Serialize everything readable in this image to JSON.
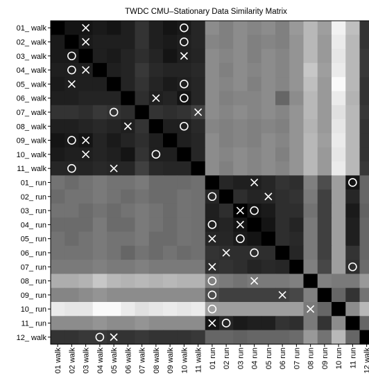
{
  "chart_data": {
    "type": "heatmap",
    "title": "TWDC  CMU–Stationary Data Similarity Matrix",
    "row_labels": [
      "01_ walk",
      "02_ walk",
      "03_ walk",
      "04_ walk",
      "05_ walk",
      "06_ walk",
      "07_ walk",
      "08_ walk",
      "09_ walk",
      "10_ walk",
      "11_ walk",
      "01_ run",
      "02_ run",
      "03_ run",
      "04_ run",
      "05_ run",
      "06_ run",
      "07_ run",
      "08_ run",
      "09_ run",
      "10_ run",
      "11_ run",
      "12_ walk"
    ],
    "col_labels": [
      "01 walk",
      "02 walk",
      "03 walk",
      "04 walk",
      "05 walk",
      "06 walk",
      "07 walk",
      "08 walk",
      "09 walk",
      "10 walk",
      "11 walk",
      "01 run",
      "02 run",
      "03 run",
      "04 run",
      "05 run",
      "06 run",
      "07 run",
      "08 run",
      "09 run",
      "10 run",
      "11 run",
      "12 walk"
    ],
    "colormap": "grayscale",
    "legend": "none",
    "grid": false,
    "values": [
      [
        0,
        8,
        8,
        10,
        8,
        12,
        20,
        12,
        8,
        10,
        15,
        55,
        50,
        55,
        52,
        55,
        50,
        60,
        72,
        62,
        95,
        75,
        20
      ],
      [
        10,
        0,
        10,
        12,
        12,
        12,
        20,
        12,
        10,
        12,
        15,
        52,
        50,
        55,
        50,
        52,
        50,
        58,
        72,
        60,
        92,
        72,
        20
      ],
      [
        10,
        10,
        0,
        12,
        10,
        14,
        18,
        14,
        8,
        12,
        14,
        55,
        52,
        55,
        50,
        55,
        52,
        58,
        72,
        60,
        90,
        72,
        22
      ],
      [
        12,
        12,
        12,
        0,
        12,
        14,
        22,
        16,
        14,
        14,
        16,
        55,
        50,
        55,
        52,
        55,
        52,
        58,
        78,
        62,
        92,
        72,
        22
      ],
      [
        10,
        12,
        12,
        12,
        0,
        14,
        20,
        14,
        10,
        12,
        15,
        55,
        52,
        55,
        50,
        55,
        52,
        58,
        75,
        60,
        98,
        72,
        20
      ],
      [
        12,
        12,
        14,
        14,
        14,
        0,
        18,
        12,
        14,
        8,
        15,
        55,
        50,
        52,
        52,
        55,
        40,
        55,
        72,
        60,
        92,
        70,
        20
      ],
      [
        20,
        20,
        18,
        22,
        20,
        18,
        0,
        20,
        18,
        20,
        25,
        55,
        52,
        55,
        52,
        55,
        52,
        58,
        72,
        60,
        88,
        72,
        22
      ],
      [
        12,
        12,
        14,
        16,
        14,
        12,
        20,
        0,
        12,
        12,
        16,
        52,
        50,
        52,
        50,
        52,
        50,
        58,
        70,
        60,
        90,
        72,
        20
      ],
      [
        8,
        10,
        8,
        14,
        10,
        14,
        18,
        12,
        0,
        12,
        15,
        55,
        50,
        52,
        50,
        55,
        52,
        58,
        72,
        62,
        92,
        72,
        20
      ],
      [
        10,
        12,
        12,
        14,
        12,
        8,
        20,
        12,
        12,
        0,
        15,
        55,
        52,
        55,
        52,
        55,
        50,
        58,
        72,
        60,
        90,
        72,
        20
      ],
      [
        15,
        15,
        14,
        16,
        15,
        15,
        25,
        16,
        15,
        15,
        0,
        55,
        50,
        55,
        52,
        55,
        52,
        58,
        72,
        60,
        92,
        72,
        22
      ],
      [
        45,
        42,
        45,
        48,
        45,
        45,
        48,
        42,
        42,
        42,
        44,
        0,
        15,
        12,
        12,
        15,
        20,
        18,
        50,
        30,
        62,
        8,
        40
      ],
      [
        42,
        45,
        45,
        48,
        45,
        42,
        45,
        42,
        42,
        45,
        44,
        15,
        0,
        18,
        14,
        15,
        18,
        20,
        48,
        25,
        62,
        15,
        40
      ],
      [
        45,
        45,
        42,
        45,
        42,
        45,
        48,
        45,
        42,
        45,
        44,
        12,
        18,
        0,
        8,
        10,
        18,
        18,
        45,
        25,
        62,
        10,
        38
      ],
      [
        42,
        42,
        42,
        48,
        42,
        42,
        48,
        45,
        42,
        45,
        44,
        12,
        14,
        8,
        0,
        8,
        18,
        14,
        48,
        25,
        62,
        12,
        40
      ],
      [
        45,
        42,
        45,
        48,
        45,
        45,
        48,
        42,
        42,
        45,
        44,
        15,
        15,
        10,
        8,
        0,
        18,
        16,
        48,
        25,
        62,
        12,
        40
      ],
      [
        45,
        45,
        45,
        48,
        45,
        40,
        45,
        42,
        45,
        42,
        44,
        20,
        18,
        18,
        18,
        18,
        0,
        15,
        48,
        25,
        62,
        20,
        40
      ],
      [
        48,
        48,
        48,
        50,
        48,
        48,
        50,
        48,
        48,
        48,
        48,
        18,
        20,
        18,
        14,
        16,
        15,
        0,
        50,
        28,
        62,
        18,
        42
      ],
      [
        68,
        68,
        70,
        78,
        72,
        70,
        72,
        70,
        72,
        70,
        70,
        50,
        48,
        45,
        48,
        48,
        48,
        50,
        0,
        50,
        48,
        48,
        60
      ],
      [
        52,
        52,
        55,
        58,
        55,
        55,
        55,
        55,
        55,
        55,
        55,
        30,
        25,
        25,
        25,
        25,
        25,
        28,
        50,
        0,
        40,
        20,
        45
      ],
      [
        92,
        90,
        90,
        98,
        98,
        92,
        88,
        90,
        92,
        90,
        92,
        62,
        62,
        62,
        62,
        62,
        62,
        62,
        48,
        40,
        0,
        55,
        72
      ],
      [
        55,
        55,
        55,
        58,
        55,
        55,
        58,
        55,
        55,
        55,
        55,
        8,
        15,
        10,
        12,
        12,
        20,
        18,
        48,
        20,
        55,
        0,
        40
      ],
      [
        20,
        20,
        22,
        22,
        20,
        20,
        22,
        20,
        20,
        20,
        22,
        40,
        40,
        38,
        40,
        40,
        40,
        42,
        60,
        45,
        72,
        40,
        0
      ]
    ],
    "markers": [
      {
        "row": 1,
        "col": 3,
        "symbol": "×"
      },
      {
        "row": 1,
        "col": 10,
        "symbol": "○"
      },
      {
        "row": 2,
        "col": 3,
        "symbol": "×"
      },
      {
        "row": 2,
        "col": 10,
        "symbol": "○"
      },
      {
        "row": 3,
        "col": 2,
        "symbol": "○"
      },
      {
        "row": 3,
        "col": 10,
        "symbol": "×"
      },
      {
        "row": 4,
        "col": 2,
        "symbol": "○"
      },
      {
        "row": 4,
        "col": 3,
        "symbol": "×"
      },
      {
        "row": 5,
        "col": 2,
        "symbol": "×"
      },
      {
        "row": 5,
        "col": 10,
        "symbol": "○"
      },
      {
        "row": 6,
        "col": 8,
        "symbol": "×"
      },
      {
        "row": 6,
        "col": 10,
        "symbol": "○"
      },
      {
        "row": 7,
        "col": 5,
        "symbol": "○"
      },
      {
        "row": 7,
        "col": 11,
        "symbol": "×"
      },
      {
        "row": 8,
        "col": 6,
        "symbol": "×"
      },
      {
        "row": 8,
        "col": 10,
        "symbol": "○"
      },
      {
        "row": 9,
        "col": 2,
        "symbol": "○"
      },
      {
        "row": 9,
        "col": 3,
        "symbol": "×"
      },
      {
        "row": 10,
        "col": 3,
        "symbol": "×"
      },
      {
        "row": 10,
        "col": 8,
        "symbol": "○"
      },
      {
        "row": 11,
        "col": 2,
        "symbol": "○"
      },
      {
        "row": 11,
        "col": 5,
        "symbol": "×"
      },
      {
        "row": 12,
        "col": 15,
        "symbol": "×"
      },
      {
        "row": 12,
        "col": 22,
        "symbol": "○"
      },
      {
        "row": 13,
        "col": 12,
        "symbol": "○"
      },
      {
        "row": 13,
        "col": 16,
        "symbol": "×"
      },
      {
        "row": 14,
        "col": 14,
        "symbol": "×"
      },
      {
        "row": 14,
        "col": 15,
        "symbol": "○"
      },
      {
        "row": 15,
        "col": 12,
        "symbol": "○"
      },
      {
        "row": 15,
        "col": 14,
        "symbol": "×"
      },
      {
        "row": 16,
        "col": 12,
        "symbol": "×"
      },
      {
        "row": 16,
        "col": 14,
        "symbol": "○"
      },
      {
        "row": 17,
        "col": 13,
        "symbol": "×"
      },
      {
        "row": 17,
        "col": 15,
        "symbol": "○"
      },
      {
        "row": 18,
        "col": 12,
        "symbol": "×"
      },
      {
        "row": 18,
        "col": 22,
        "symbol": "○"
      },
      {
        "row": 19,
        "col": 12,
        "symbol": "○"
      },
      {
        "row": 19,
        "col": 15,
        "symbol": "×"
      },
      {
        "row": 20,
        "col": 12,
        "symbol": "○"
      },
      {
        "row": 20,
        "col": 17,
        "symbol": "×"
      },
      {
        "row": 21,
        "col": 12,
        "symbol": "○"
      },
      {
        "row": 21,
        "col": 19,
        "symbol": "×"
      },
      {
        "row": 22,
        "col": 12,
        "symbol": "×"
      },
      {
        "row": 22,
        "col": 13,
        "symbol": "○"
      },
      {
        "row": 23,
        "col": 4,
        "symbol": "○"
      },
      {
        "row": 23,
        "col": 5,
        "symbol": "×"
      }
    ]
  }
}
